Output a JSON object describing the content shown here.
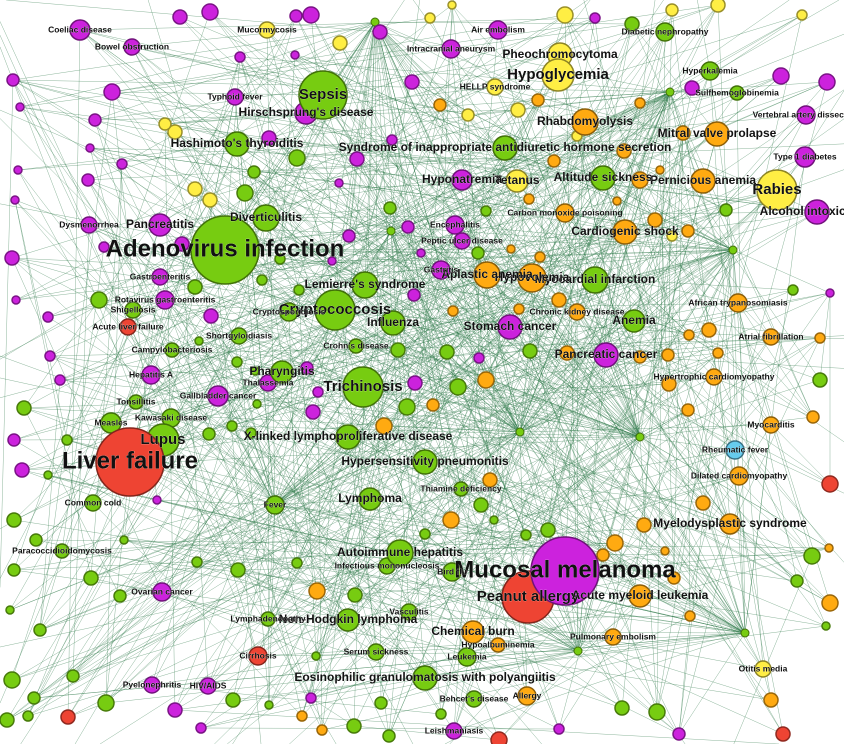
{
  "colors": {
    "magenta": "#cc22dd",
    "green": "#77cc11",
    "orange": "#ffaa11",
    "yellow": "#ffee44",
    "red": "#ee4433",
    "cyan": "#66ccee",
    "edge": "#2f7a4a"
  },
  "nodes": [
    {
      "id": "n1",
      "label": "Adenovirus infection",
      "color": "green",
      "size": "xl"
    },
    {
      "id": "n2",
      "label": "Liver failure",
      "color": "red",
      "size": "xl"
    },
    {
      "id": "n3",
      "label": "Mucosal melanoma",
      "color": "magenta",
      "size": "xl"
    },
    {
      "id": "n4",
      "label": "Peanut allergy",
      "color": "red",
      "size": "l"
    },
    {
      "id": "n5",
      "label": "Cryptococcosis",
      "color": "green",
      "size": "l"
    },
    {
      "id": "n6",
      "label": "Sepsis",
      "color": "green",
      "size": "l"
    },
    {
      "id": "n7",
      "label": "Lupus",
      "color": "green",
      "size": "l"
    },
    {
      "id": "n8",
      "label": "Trichinosis",
      "color": "green",
      "size": "l"
    },
    {
      "id": "n9",
      "label": "Rabies",
      "color": "yellow",
      "size": "l"
    },
    {
      "id": "n10",
      "label": "Hypoglycemia",
      "color": "yellow",
      "size": "l"
    },
    {
      "id": "n11",
      "label": "Lemierre's syndrome",
      "color": "green",
      "size": "m"
    },
    {
      "id": "n12",
      "label": "Syndrome of inappropriate antidiuretic hormone secretion",
      "color": "green",
      "size": "m"
    },
    {
      "id": "n13",
      "label": "Myocardial infarction",
      "color": "green",
      "size": "m"
    },
    {
      "id": "n14",
      "label": "Hypovolemia",
      "color": "orange",
      "size": "m"
    },
    {
      "id": "n15",
      "label": "Aplastic anemia",
      "color": "orange",
      "size": "m"
    },
    {
      "id": "n16",
      "label": "Pernicious anemia",
      "color": "orange",
      "size": "m"
    },
    {
      "id": "n17",
      "label": "Autoimmune hepatitis",
      "color": "green",
      "size": "m"
    },
    {
      "id": "n18",
      "label": "Cardiogenic shock",
      "color": "orange",
      "size": "m"
    },
    {
      "id": "n19",
      "label": "Diverticulitis",
      "color": "green",
      "size": "m"
    },
    {
      "id": "n20",
      "label": "Hypersensitivity pneumonitis",
      "color": "green",
      "size": "m"
    },
    {
      "id": "n21",
      "label": "Stomach cancer",
      "color": "magenta",
      "size": "m"
    },
    {
      "id": "n22",
      "label": "Rhabdomyolysis",
      "color": "orange",
      "size": "m"
    },
    {
      "id": "n23",
      "label": "Pheochromocytoma",
      "color": "yellow",
      "size": "m"
    },
    {
      "id": "n24",
      "label": "Hashimoto's thyroiditis",
      "color": "green",
      "size": "m"
    },
    {
      "id": "n25",
      "label": "Influenza",
      "color": "green",
      "size": "m"
    },
    {
      "id": "n26",
      "label": "Mitral valve prolapse",
      "color": "orange",
      "size": "m"
    },
    {
      "id": "n27",
      "label": "Alcohol intoxication",
      "color": "magenta",
      "size": "m"
    },
    {
      "id": "n28",
      "label": "Pancreatic cancer",
      "color": "magenta",
      "size": "m"
    },
    {
      "id": "n29",
      "label": "Lymphoma",
      "color": "green",
      "size": "m"
    },
    {
      "id": "n30",
      "label": "Non-Hodgkin lymphoma",
      "color": "green",
      "size": "m"
    },
    {
      "id": "n31",
      "label": "Myelodysplastic syndrome",
      "color": "orange",
      "size": "m"
    },
    {
      "id": "n32",
      "label": "Eosinophilic granulomatosis with polyangiitis",
      "color": "green",
      "size": "m"
    },
    {
      "id": "n33",
      "label": "X-linked lymphoproliferative disease",
      "color": "green",
      "size": "m"
    },
    {
      "id": "n34",
      "label": "Acute myeloid leukemia",
      "color": "orange",
      "size": "m"
    },
    {
      "id": "n35",
      "label": "Chemical burn",
      "color": "orange",
      "size": "m"
    },
    {
      "id": "n36",
      "label": "Pharyngitis",
      "color": "green",
      "size": "m"
    },
    {
      "id": "n37",
      "label": "Hirschsprung's disease",
      "color": "magenta",
      "size": "m"
    },
    {
      "id": "n38",
      "label": "Tetanus",
      "color": "yellow",
      "size": "m"
    },
    {
      "id": "n39",
      "label": "Hyponatremia",
      "color": "magenta",
      "size": "m"
    },
    {
      "id": "n40",
      "label": "Altitude sickness",
      "color": "green",
      "size": "m"
    },
    {
      "id": "n41",
      "label": "Carbon monoxide poisoning",
      "color": "orange",
      "size": "s"
    },
    {
      "id": "n42",
      "label": "Pancreatitis",
      "color": "magenta",
      "size": "m"
    },
    {
      "id": "n43",
      "label": "Gallbladder cancer",
      "color": "magenta",
      "size": "s"
    },
    {
      "id": "n44",
      "label": "Fever",
      "color": "green",
      "size": "s"
    },
    {
      "id": "n45",
      "label": "Anemia",
      "color": "green",
      "size": "m"
    },
    {
      "id": "n46",
      "label": "Dilated cardiomyopathy",
      "color": "orange",
      "size": "s"
    },
    {
      "id": "n47",
      "label": "Rheumatic fever",
      "color": "cyan",
      "size": "s"
    },
    {
      "id": "n48",
      "label": "Cirrhosis",
      "color": "red",
      "size": "s"
    },
    {
      "id": "n49",
      "label": "Allergy",
      "color": "orange",
      "size": "s"
    },
    {
      "id": "n50",
      "label": "Leukemia",
      "color": "green",
      "size": "s"
    },
    {
      "id": "n51",
      "label": "Measles",
      "color": "green",
      "size": "s"
    },
    {
      "id": "n52",
      "label": "Kawasaki disease",
      "color": "green",
      "size": "s"
    },
    {
      "id": "n53",
      "label": "Hepatitis A",
      "color": "magenta",
      "size": "s"
    },
    {
      "id": "n54",
      "label": "Coeliac disease",
      "color": "magenta",
      "size": "s"
    },
    {
      "id": "n55",
      "label": "Air embolism",
      "color": "magenta",
      "size": "s"
    },
    {
      "id": "n56",
      "label": "Intracranial aneurysm",
      "color": "magenta",
      "size": "s"
    },
    {
      "id": "n57",
      "label": "Diabetic nephropathy",
      "color": "green",
      "size": "s"
    },
    {
      "id": "n58",
      "label": "Hyperkalemia",
      "color": "green",
      "size": "s"
    },
    {
      "id": "n59",
      "label": "Type 1 diabetes",
      "color": "magenta",
      "size": "s"
    },
    {
      "id": "n60",
      "label": "Vertebral artery dissection",
      "color": "magenta",
      "size": "s"
    },
    {
      "id": "n61",
      "label": "African trypanosomiasis",
      "color": "orange",
      "size": "s"
    },
    {
      "id": "n62",
      "label": "Atrial fibrillation",
      "color": "orange",
      "size": "s"
    },
    {
      "id": "n63",
      "label": "Hypertrophic cardiomyopathy",
      "color": "orange",
      "size": "s"
    },
    {
      "id": "n64",
      "label": "Myocarditis",
      "color": "orange",
      "size": "s"
    },
    {
      "id": "n65",
      "label": "Common cold",
      "color": "green",
      "size": "s"
    },
    {
      "id": "n66",
      "label": "Bird flu",
      "color": "green",
      "size": "s"
    },
    {
      "id": "n67",
      "label": "Encephalitis",
      "color": "magenta",
      "size": "s"
    },
    {
      "id": "n68",
      "label": "Gastritis",
      "color": "magenta",
      "size": "s"
    },
    {
      "id": "n69",
      "label": "Cryptosporidiosis",
      "color": "green",
      "size": "s"
    },
    {
      "id": "n70",
      "label": "Shigellosis",
      "color": "green",
      "size": "s"
    },
    {
      "id": "n71",
      "label": "Rotavirus gastroenteritis",
      "color": "magenta",
      "size": "s"
    },
    {
      "id": "n72",
      "label": "Gastroenteritis",
      "color": "magenta",
      "size": "s"
    },
    {
      "id": "n73",
      "label": "Acute liver failure",
      "color": "red",
      "size": "s"
    },
    {
      "id": "n74",
      "label": "Thalassemia",
      "color": "magenta",
      "size": "s"
    },
    {
      "id": "n75",
      "label": "Pyelonephritis",
      "color": "magenta",
      "size": "s"
    },
    {
      "id": "n76",
      "label": "Ovarian cancer",
      "color": "magenta",
      "size": "s"
    },
    {
      "id": "n77",
      "label": "Paracoccidioidomycosis",
      "color": "green",
      "size": "s"
    },
    {
      "id": "n78",
      "label": "Mucormycosis",
      "color": "yellow",
      "size": "s"
    },
    {
      "id": "n79",
      "label": "Bowel obstruction",
      "color": "magenta",
      "size": "s"
    },
    {
      "id": "n80",
      "label": "Typhoid fever",
      "color": "magenta",
      "size": "s"
    },
    {
      "id": "n81",
      "label": "Dysmenorrhea",
      "color": "magenta",
      "size": "s"
    },
    {
      "id": "n82",
      "label": "HELLP syndrome",
      "color": "yellow",
      "size": "s"
    },
    {
      "id": "n83",
      "label": "Sulfhemoglobinemia",
      "color": "green",
      "size": "s"
    },
    {
      "id": "n84",
      "label": "Peptic ulcer disease",
      "color": "magenta",
      "size": "s"
    },
    {
      "id": "n85",
      "label": "Chronic kidney disease",
      "color": "orange",
      "size": "s"
    },
    {
      "id": "n86",
      "label": "Infectious mononucleosis",
      "color": "green",
      "size": "s"
    },
    {
      "id": "n87",
      "label": "Thiamine deficiency",
      "color": "green",
      "size": "s"
    },
    {
      "id": "n88",
      "label": "Serum sickness",
      "color": "green",
      "size": "s"
    },
    {
      "id": "n89",
      "label": "Vasculitis",
      "color": "green",
      "size": "s"
    },
    {
      "id": "n90",
      "label": "Behcet's disease",
      "color": "green",
      "size": "s"
    },
    {
      "id": "n91",
      "label": "Leishmaniasis",
      "color": "magenta",
      "size": "s"
    },
    {
      "id": "n92",
      "label": "Otitis media",
      "color": "yellow",
      "size": "s"
    },
    {
      "id": "n93",
      "label": "Pulmonary embolism",
      "color": "orange",
      "size": "s"
    },
    {
      "id": "n94",
      "label": "Hypoalbuminemia",
      "color": "orange",
      "size": "s"
    },
    {
      "id": "n95",
      "label": "Crohn's disease",
      "color": "green",
      "size": "s"
    },
    {
      "id": "n96",
      "label": "Shortgyloidiasis",
      "color": "green",
      "size": "s"
    },
    {
      "id": "n97",
      "label": "Campylobacteriosis",
      "color": "green",
      "size": "s"
    },
    {
      "id": "n98",
      "label": "Tonsillitis",
      "color": "green",
      "size": "s"
    },
    {
      "id": "n99",
      "label": "Lymphadenopathy",
      "color": "green",
      "size": "s"
    },
    {
      "id": "n100",
      "label": "HIV/AIDS",
      "color": "magenta",
      "size": "s"
    }
  ]
}
